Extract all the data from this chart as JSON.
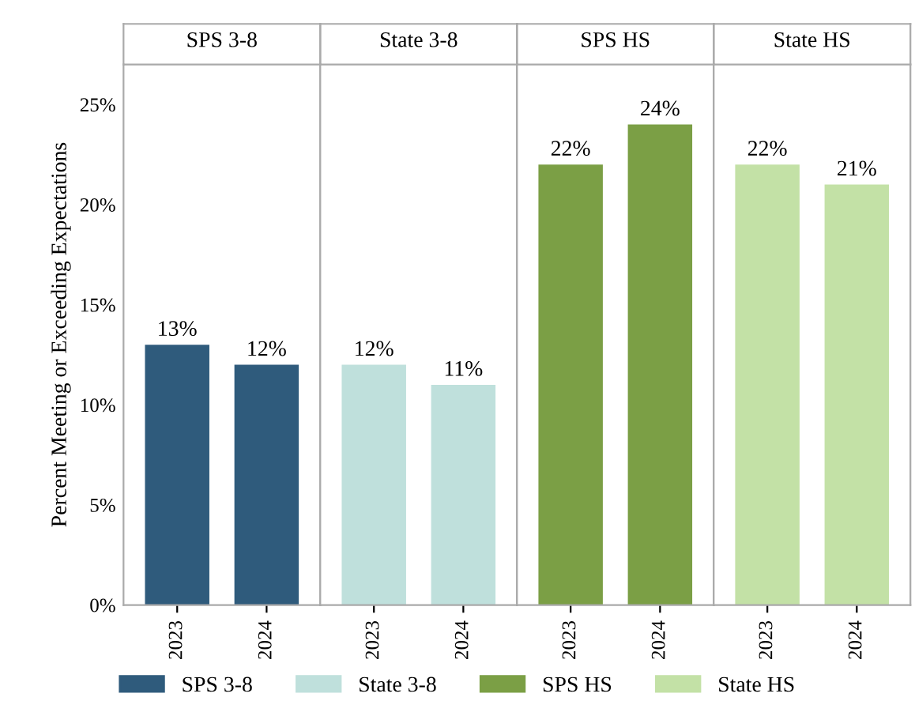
{
  "chart_data": [
    {
      "type": "bar",
      "title": "SPS 3-8",
      "ylabel": "Percent Meeting or Exceeding Expectations",
      "categories": [
        "2023",
        "2024"
      ],
      "series": [
        {
          "name": "SPS 3-8",
          "color": "#2f5b7c",
          "values": [
            13,
            12
          ],
          "value_labels": [
            "13%",
            "12%"
          ]
        }
      ],
      "ylim": [
        0,
        27
      ],
      "yticks": [
        {
          "value": 0,
          "label": "0%"
        },
        {
          "value": 5,
          "label": "5%"
        },
        {
          "value": 10,
          "label": "10%"
        },
        {
          "value": 15,
          "label": "15%"
        },
        {
          "value": 20,
          "label": "20%"
        },
        {
          "value": 25,
          "label": "25%"
        }
      ],
      "legend": "bottom"
    },
    {
      "type": "bar",
      "title": "State 3-8",
      "categories": [
        "2023",
        "2024"
      ],
      "series": [
        {
          "name": "State 3-8",
          "color": "#bfe0dc",
          "values": [
            12,
            11
          ],
          "value_labels": [
            "12%",
            "11%"
          ]
        }
      ],
      "ylim": [
        0,
        27
      ],
      "tick_labels": "x",
      "legend": "bottom"
    },
    {
      "type": "bar",
      "title": "SPS HS",
      "categories": [
        "2023",
        "2024"
      ],
      "series": [
        {
          "name": "SPS HS",
          "color": "#7b9f45",
          "values": [
            22,
            24
          ],
          "value_labels": [
            "22%",
            "24%"
          ]
        }
      ],
      "ylim": [
        0,
        27
      ],
      "tick_labels": "x",
      "legend": "bottom"
    },
    {
      "type": "bar",
      "title": "State HS",
      "categories": [
        "2023",
        "2024"
      ],
      "series": [
        {
          "name": "State HS",
          "color": "#c3e1a6",
          "values": [
            22,
            21
          ],
          "value_labels": [
            "22%",
            "21%"
          ]
        }
      ],
      "ylim": [
        0,
        27
      ],
      "tick_labels": "x",
      "legend": "bottom"
    }
  ]
}
